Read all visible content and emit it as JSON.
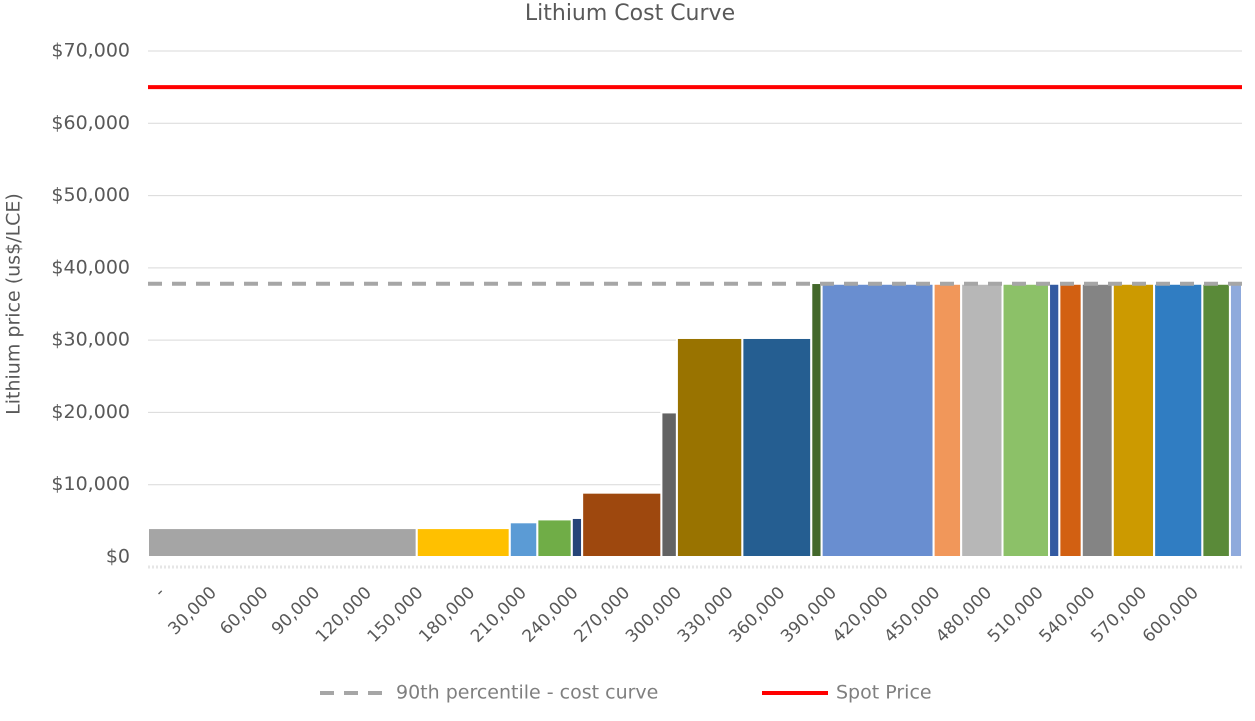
{
  "chart_data": {
    "type": "cost-curve",
    "title": "Lithium Cost Curve",
    "y_label": "Lithium price (us$/LCE)",
    "widths": [
      156,
      54,
      16,
      20,
      6,
      46,
      9,
      38,
      40,
      6,
      65,
      16,
      24,
      27,
      6,
      13,
      18,
      24,
      28,
      16,
      7
    ],
    "width_unit": 1000,
    "values": [
      4000,
      4000,
      4800,
      5200,
      5400,
      8900,
      20000,
      30300,
      30300,
      37900,
      37800,
      37800,
      37800,
      37800,
      37800,
      37800,
      37800,
      37800,
      37800,
      37800,
      37800
    ],
    "colors": [
      "#a5a5a5",
      "#ffc000",
      "#5b9bd5",
      "#70ad47",
      "#264478",
      "#9e480e",
      "#636363",
      "#997300",
      "#255e91",
      "#43682b",
      "#698ed0",
      "#f1975a",
      "#b7b7b7",
      "#8cc168",
      "#335aa1",
      "#d26012",
      "#848484",
      "#cc9a00",
      "#307dc2",
      "#5a8a39",
      "#8faadc"
    ],
    "lines": [
      {
        "name": "90th percentile - cost curve",
        "color": "#a6a6a6",
        "value": 37800,
        "dashed": true
      },
      {
        "name": "Spot Price",
        "color": "#ff0000",
        "value": 65000,
        "dashed": false
      }
    ],
    "xlim": [
      0,
      635000
    ],
    "xticks": [
      {
        "value": 0,
        "label": "-"
      },
      {
        "value": 30000,
        "label": "30,000"
      },
      {
        "value": 60000,
        "label": "60,000"
      },
      {
        "value": 90000,
        "label": "90,000"
      },
      {
        "value": 120000,
        "label": "120,000"
      },
      {
        "value": 150000,
        "label": "150,000"
      },
      {
        "value": 180000,
        "label": "180,000"
      },
      {
        "value": 210000,
        "label": "210,000"
      },
      {
        "value": 240000,
        "label": "240,000"
      },
      {
        "value": 270000,
        "label": "270,000"
      },
      {
        "value": 300000,
        "label": "300,000"
      },
      {
        "value": 330000,
        "label": "330,000"
      },
      {
        "value": 360000,
        "label": "360,000"
      },
      {
        "value": 390000,
        "label": "390,000"
      },
      {
        "value": 420000,
        "label": "420,000"
      },
      {
        "value": 450000,
        "label": "450,000"
      },
      {
        "value": 480000,
        "label": "480,000"
      },
      {
        "value": 510000,
        "label": "510,000"
      },
      {
        "value": 540000,
        "label": "540,000"
      },
      {
        "value": 570000,
        "label": "570,000"
      },
      {
        "value": 600000,
        "label": "600,000"
      }
    ],
    "ylim": [
      0,
      70000
    ],
    "yticks": [
      {
        "value": 0,
        "label": "$0"
      },
      {
        "value": 10000,
        "label": "$10,000"
      },
      {
        "value": 20000,
        "label": "$20,000"
      },
      {
        "value": 30000,
        "label": "$30,000"
      },
      {
        "value": 40000,
        "label": "$40,000"
      },
      {
        "value": 50000,
        "label": "$50,000"
      },
      {
        "value": 60000,
        "label": "$60,000"
      },
      {
        "value": 70000,
        "label": "$70,000"
      }
    ],
    "grid": true
  }
}
